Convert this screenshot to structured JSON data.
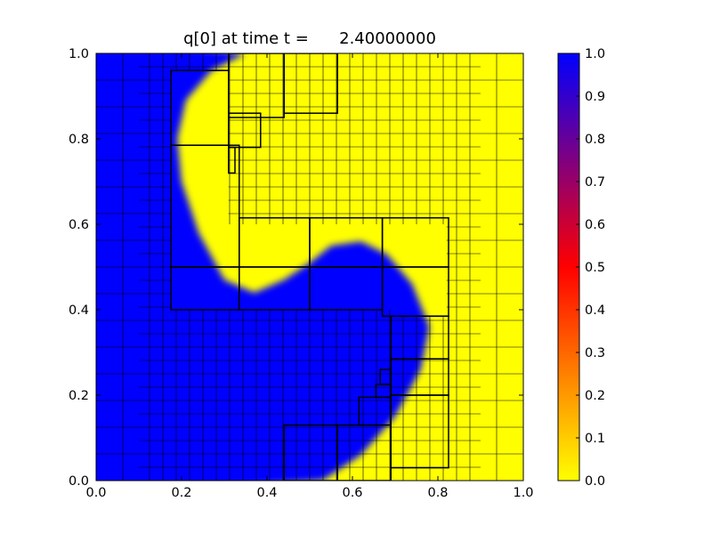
{
  "chart_data": {
    "type": "heatmap",
    "title": "q[0] at time t =      2.40000000",
    "xlim": [
      0.0,
      1.0
    ],
    "ylim": [
      0.0,
      1.0
    ],
    "x_ticks": [
      "0.0",
      "0.2",
      "0.4",
      "0.6",
      "0.8",
      "1.0"
    ],
    "y_ticks": [
      "0.0",
      "0.2",
      "0.4",
      "0.6",
      "0.8",
      "1.0"
    ],
    "colorbar": {
      "range": [
        0.0,
        1.0
      ],
      "ticks": [
        "0.0",
        "0.1",
        "0.2",
        "0.3",
        "0.4",
        "0.5",
        "0.6",
        "0.7",
        "0.8",
        "0.9",
        "1.0"
      ],
      "colors": [
        "#ffff00",
        "#ff8000",
        "#ff0000",
        "#800080",
        "#0000ff"
      ]
    },
    "field": {
      "high_value": 1.0,
      "low_value": 0.0,
      "high_color": "#0000ff",
      "low_color": "#ffff00",
      "region_boundary": [
        [
          0.35,
          1.0
        ],
        [
          0.27,
          0.96
        ],
        [
          0.21,
          0.89
        ],
        [
          0.19,
          0.8
        ],
        [
          0.2,
          0.7
        ],
        [
          0.24,
          0.58
        ],
        [
          0.3,
          0.47
        ],
        [
          0.37,
          0.44
        ],
        [
          0.44,
          0.47
        ],
        [
          0.5,
          0.51
        ],
        [
          0.55,
          0.55
        ],
        [
          0.62,
          0.56
        ],
        [
          0.68,
          0.53
        ],
        [
          0.74,
          0.46
        ],
        [
          0.78,
          0.36
        ],
        [
          0.76,
          0.26
        ],
        [
          0.7,
          0.15
        ],
        [
          0.62,
          0.06
        ],
        [
          0.53,
          0.0
        ]
      ]
    },
    "amr_patches": [
      {
        "x0": 0.0,
        "x1": 0.1,
        "y0": 0.0,
        "y1": 1.0,
        "n": 16
      },
      {
        "x0": 0.1,
        "x1": 0.175,
        "y0": 0.0,
        "y1": 1.0,
        "n": 32
      },
      {
        "x0": 0.175,
        "x1": 0.31,
        "y0": 0.0,
        "y1": 0.4,
        "n": 32
      },
      {
        "x0": 0.31,
        "x1": 0.69,
        "y0": 0.0,
        "y1": 0.4,
        "n": 32
      },
      {
        "x0": 0.175,
        "x1": 0.31,
        "y0": 0.96,
        "y1": 1.0,
        "n": 32
      },
      {
        "x0": 0.31,
        "x1": 0.9,
        "y0": 0.6,
        "y1": 1.0,
        "n": 32
      },
      {
        "x0": 0.82,
        "x1": 0.9,
        "y0": 0.0,
        "y1": 0.6,
        "n": 32
      },
      {
        "x0": 0.69,
        "x1": 0.82,
        "y0": 0.0,
        "y1": 0.385,
        "n": 32
      },
      {
        "x0": 0.9,
        "x1": 1.0,
        "y0": 0.0,
        "y1": 1.0,
        "n": 16
      }
    ],
    "coarse_patches": [
      {
        "x0": 0.175,
        "x1": 0.31,
        "y0": 0.785,
        "y1": 0.96
      },
      {
        "x0": 0.31,
        "x1": 0.44,
        "y0": 0.85,
        "y1": 1.0
      },
      {
        "x0": 0.44,
        "x1": 0.565,
        "y0": 0.86,
        "y1": 1.0
      },
      {
        "x0": 0.31,
        "x1": 0.385,
        "y0": 0.78,
        "y1": 0.86
      },
      {
        "x0": 0.31,
        "x1": 0.325,
        "y0": 0.72,
        "y1": 0.78
      },
      {
        "x0": 0.175,
        "x1": 0.335,
        "y0": 0.5,
        "y1": 0.785
      },
      {
        "x0": 0.335,
        "x1": 0.5,
        "y0": 0.5,
        "y1": 0.615
      },
      {
        "x0": 0.5,
        "x1": 0.67,
        "y0": 0.5,
        "y1": 0.615
      },
      {
        "x0": 0.67,
        "x1": 0.825,
        "y0": 0.5,
        "y1": 0.615
      },
      {
        "x0": 0.175,
        "x1": 0.335,
        "y0": 0.4,
        "y1": 0.5
      },
      {
        "x0": 0.335,
        "x1": 0.5,
        "y0": 0.4,
        "y1": 0.5
      },
      {
        "x0": 0.5,
        "x1": 0.67,
        "y0": 0.4,
        "y1": 0.5
      },
      {
        "x0": 0.67,
        "x1": 0.825,
        "y0": 0.385,
        "y1": 0.5
      },
      {
        "x0": 0.69,
        "x1": 0.825,
        "y0": 0.285,
        "y1": 0.385
      },
      {
        "x0": 0.69,
        "x1": 0.825,
        "y0": 0.2,
        "y1": 0.285
      },
      {
        "x0": 0.69,
        "x1": 0.825,
        "y0": 0.03,
        "y1": 0.2
      },
      {
        "x0": 0.44,
        "x1": 0.565,
        "y0": 0.0,
        "y1": 0.13
      },
      {
        "x0": 0.565,
        "x1": 0.69,
        "y0": 0.0,
        "y1": 0.13
      },
      {
        "x0": 0.615,
        "x1": 0.69,
        "y0": 0.13,
        "y1": 0.195
      },
      {
        "x0": 0.655,
        "x1": 0.69,
        "y0": 0.195,
        "y1": 0.225
      },
      {
        "x0": 0.665,
        "x1": 0.69,
        "y0": 0.225,
        "y1": 0.26
      }
    ]
  }
}
